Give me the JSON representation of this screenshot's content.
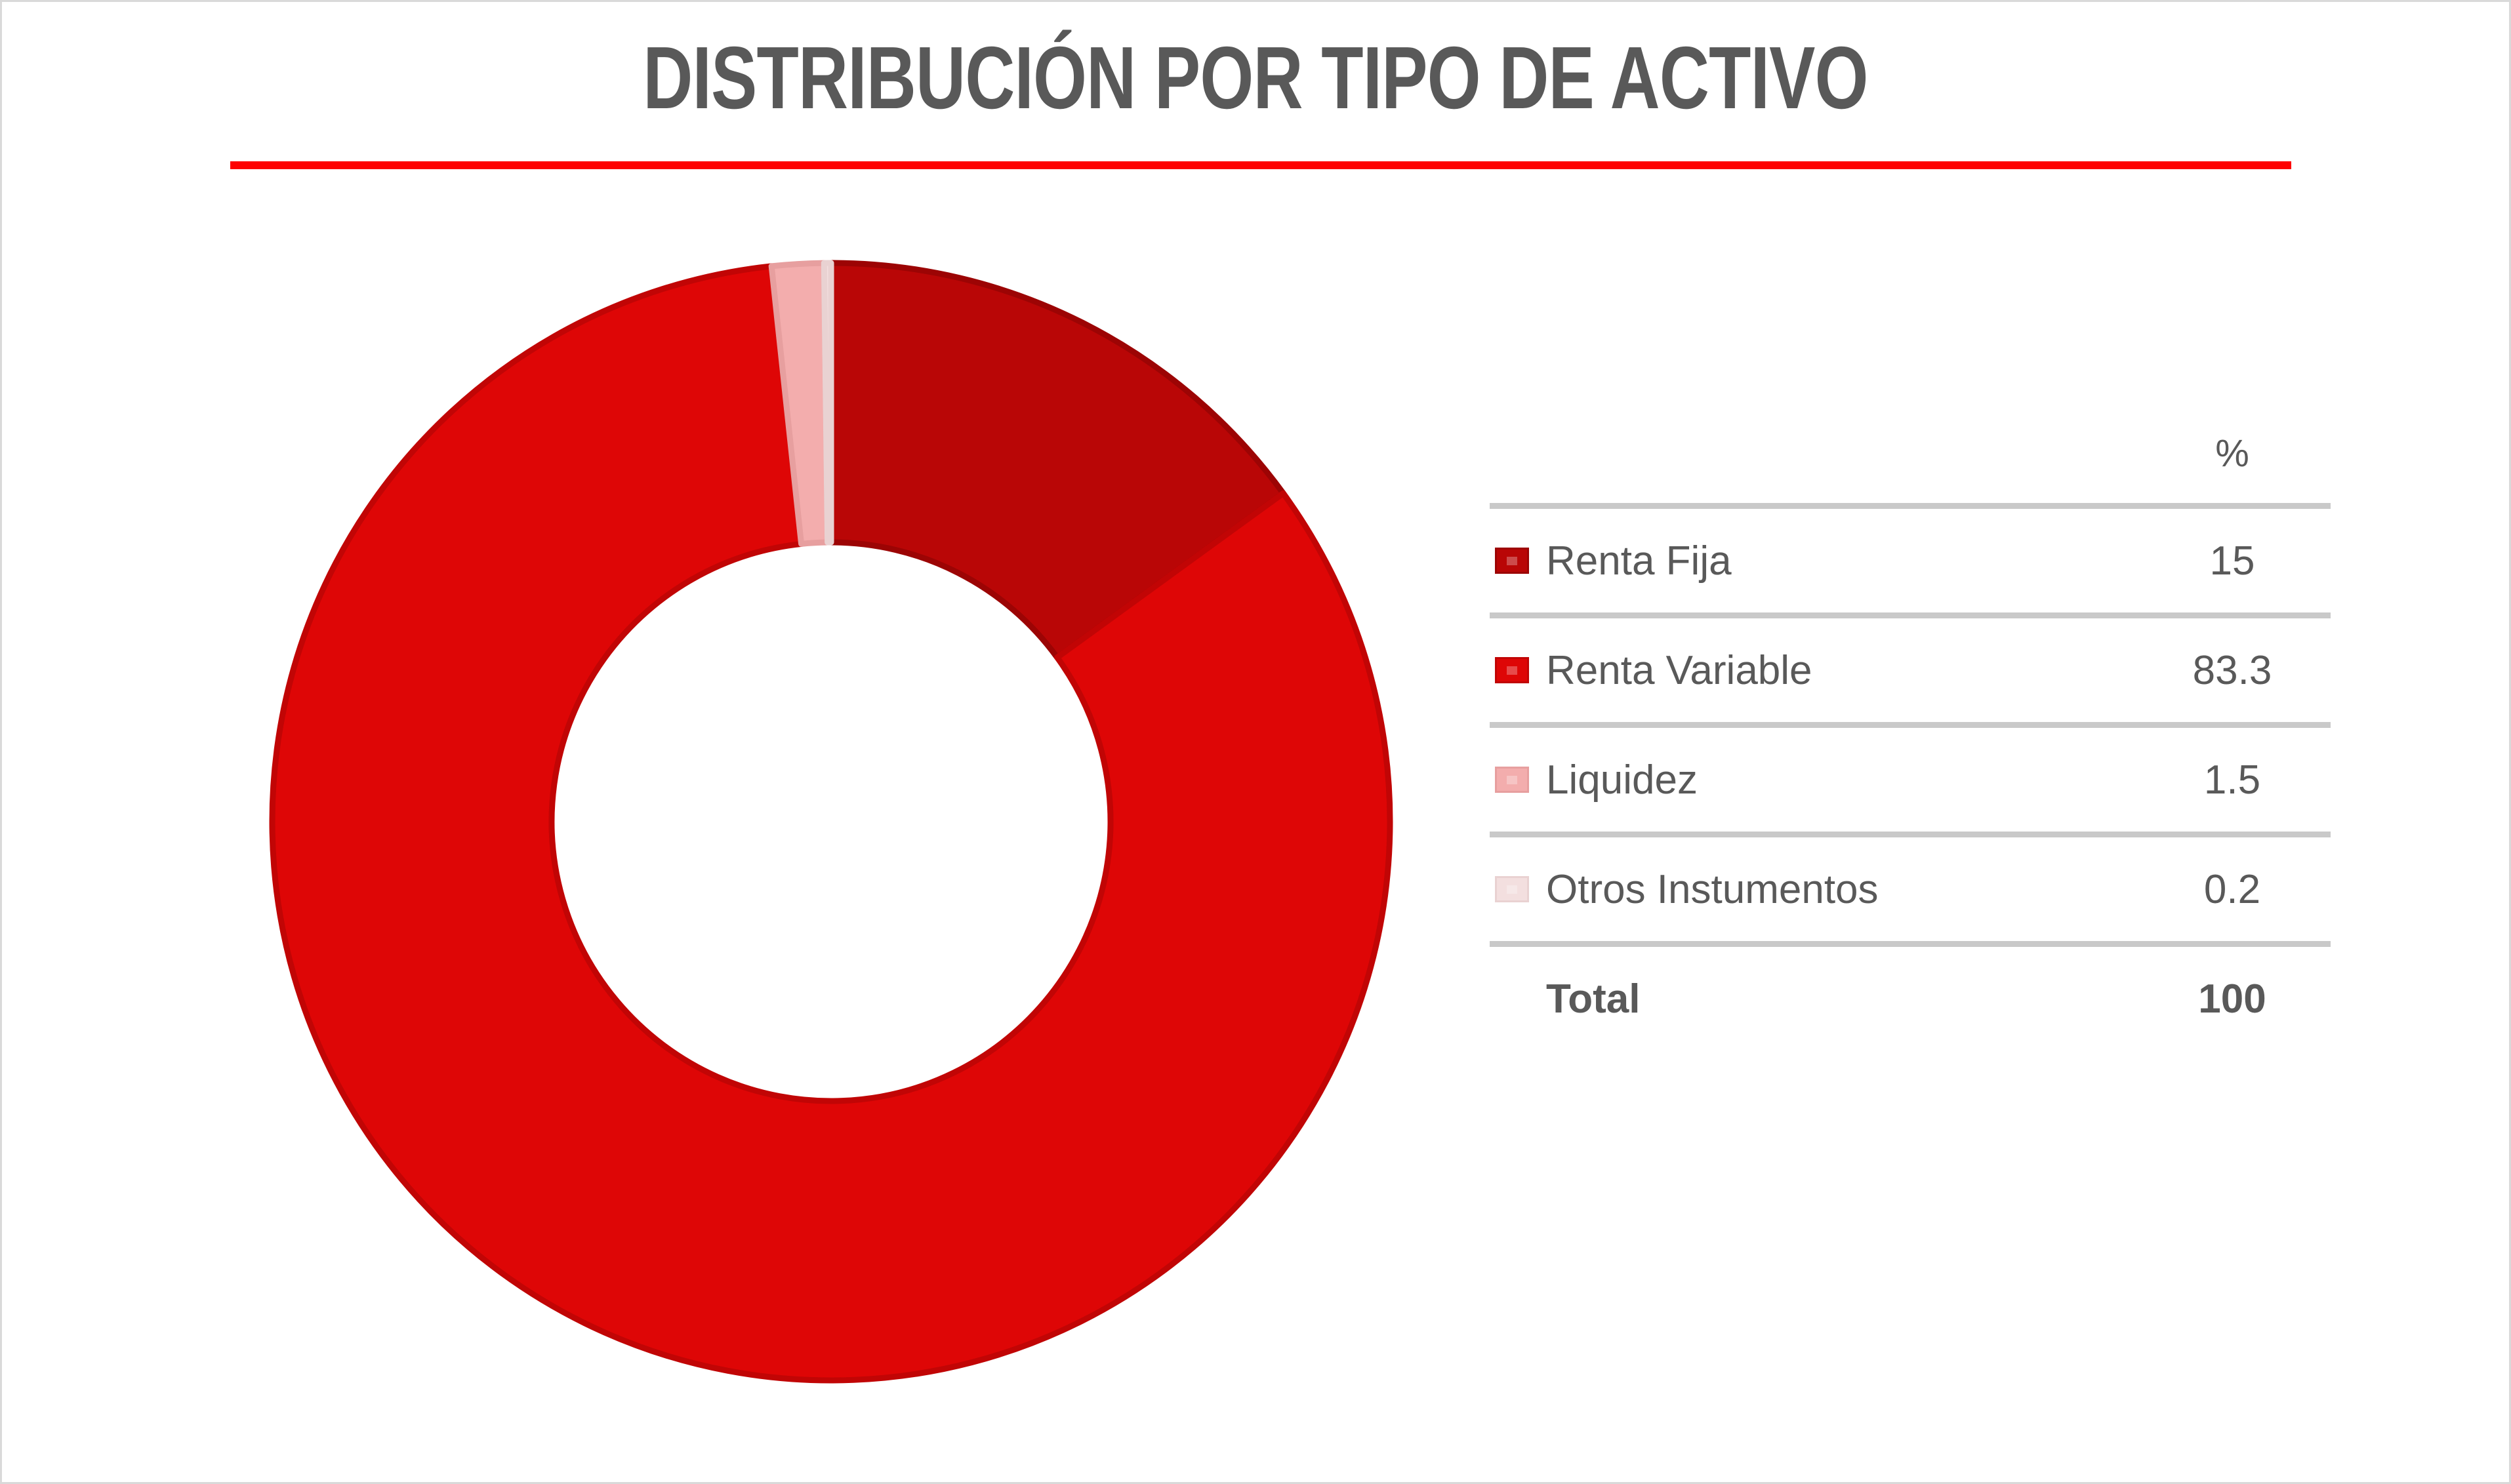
{
  "theme": {
    "background": "#ffffff",
    "frame_color": "#d9d9d9",
    "text_color": "#595959",
    "divider_color": "#c9c9c9",
    "underline_color": "#fe0202"
  },
  "header": {
    "title": "DISTRIBUCIÓN POR TIPO DE ACTIVO"
  },
  "chart_data": {
    "type": "pie",
    "subtype": "donut",
    "title": "DISTRIBUCIÓN POR TIPO DE ACTIVO",
    "unit": "%",
    "start_angle_deg": 0,
    "direction": "clockwise",
    "inner_radius_ratio": 0.5,
    "legend_position": "right",
    "categories": [
      "Renta Fija",
      "Renta Variable",
      "Liquidez",
      "Otros Instumentos"
    ],
    "values": [
      15,
      83.3,
      1.5,
      0.2
    ],
    "series": [
      {
        "name": "Renta Fija",
        "value": 15,
        "fill": "#b90606",
        "stroke": "#9c0404"
      },
      {
        "name": "Renta Variable",
        "value": 83.3,
        "fill": "#de0606",
        "stroke": "#c10505"
      },
      {
        "name": "Liquidez",
        "value": 1.5,
        "fill": "#f3adad",
        "stroke": "#e79f9f"
      },
      {
        "name": "Otros Instumentos",
        "value": 0.2,
        "fill": "#f3dfdf",
        "stroke": "#e9d2d2"
      }
    ],
    "legend": {
      "value_header": "%",
      "total_label": "Total",
      "total_value": 100
    }
  }
}
